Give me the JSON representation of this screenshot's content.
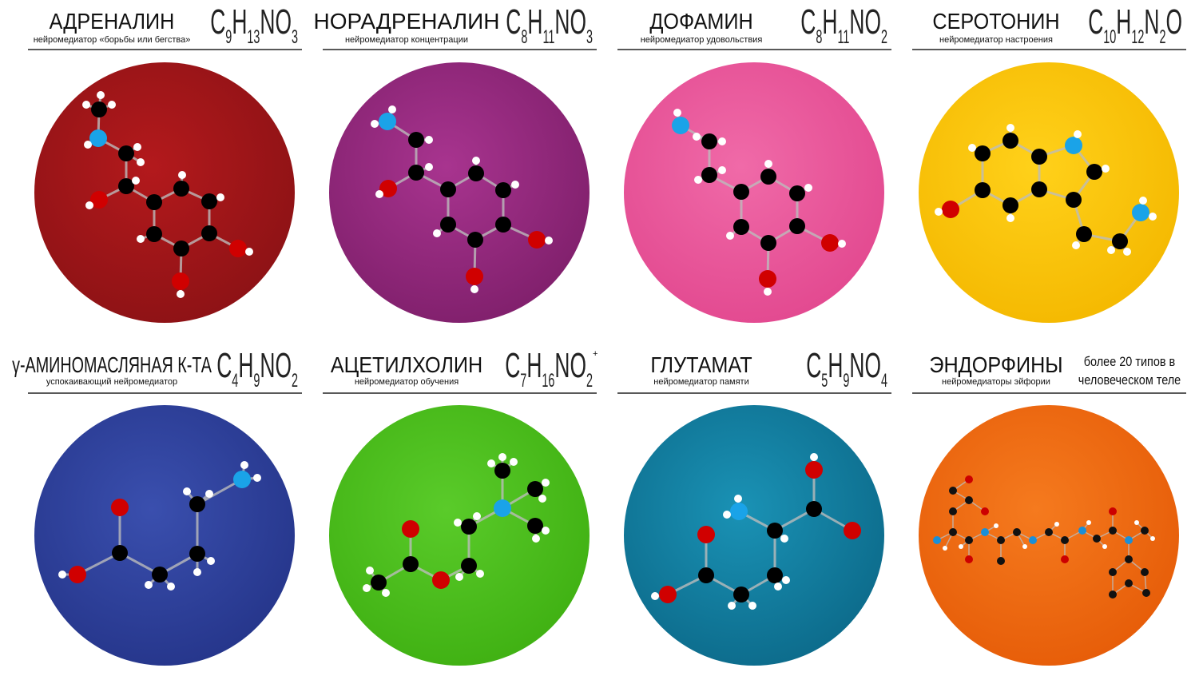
{
  "panels": [
    {
      "title": "АДРЕНАЛИН",
      "subtitle": "нейромедиатор «борьбы или бегства»",
      "formula": [
        {
          "symbol": "C",
          "count": "9"
        },
        {
          "symbol": "H",
          "count": "13"
        },
        {
          "symbol": "NO",
          "count": "3"
        }
      ]
    },
    {
      "title": "НОРАДРЕНАЛИН",
      "subtitle": "нейромедиатор концентрации",
      "formula": [
        {
          "symbol": "C",
          "count": "8"
        },
        {
          "symbol": "H",
          "count": "11"
        },
        {
          "symbol": "NO",
          "count": "3"
        }
      ]
    },
    {
      "title": "ДОФАМИН",
      "subtitle": "нейромедиатор удовольствия",
      "formula": [
        {
          "symbol": "C",
          "count": "8"
        },
        {
          "symbol": "H",
          "count": "11"
        },
        {
          "symbol": "NO",
          "count": "2"
        }
      ]
    },
    {
      "title": "СЕРОТОНИН",
      "subtitle": "нейромедиатор настроения",
      "formula": [
        {
          "symbol": "C",
          "count": "10"
        },
        {
          "symbol": "H",
          "count": "12"
        },
        {
          "symbol": "N",
          "count": "2"
        },
        {
          "symbol": "O"
        }
      ]
    },
    {
      "title": "γ-АМИНОМАСЛЯНАЯ К-ТА",
      "subtitle": "успокаивающий нейромедиатор",
      "formula": [
        {
          "symbol": "C",
          "count": "4"
        },
        {
          "symbol": "H",
          "count": "9"
        },
        {
          "symbol": "NO",
          "count": "2"
        }
      ]
    },
    {
      "title": "АЦЕТИЛХОЛИН",
      "subtitle": "нейромедиатор обучения",
      "formula": [
        {
          "symbol": "C",
          "count": "7"
        },
        {
          "symbol": "H",
          "count": "16"
        },
        {
          "symbol": "NO",
          "count": "2"
        }
      ],
      "charge": "+"
    },
    {
      "title": "ГЛУТАМАТ",
      "subtitle": "нейромедиатор памяти",
      "formula": [
        {
          "symbol": "C",
          "count": "5"
        },
        {
          "symbol": "H",
          "count": "9"
        },
        {
          "symbol": "NO",
          "count": "4"
        }
      ]
    },
    {
      "title": "ЭНДОРФИНЫ",
      "subtitle": "нейромедиаторы эйфории",
      "note": [
        "более 20 типов в",
        "человеческом теле"
      ]
    }
  ]
}
